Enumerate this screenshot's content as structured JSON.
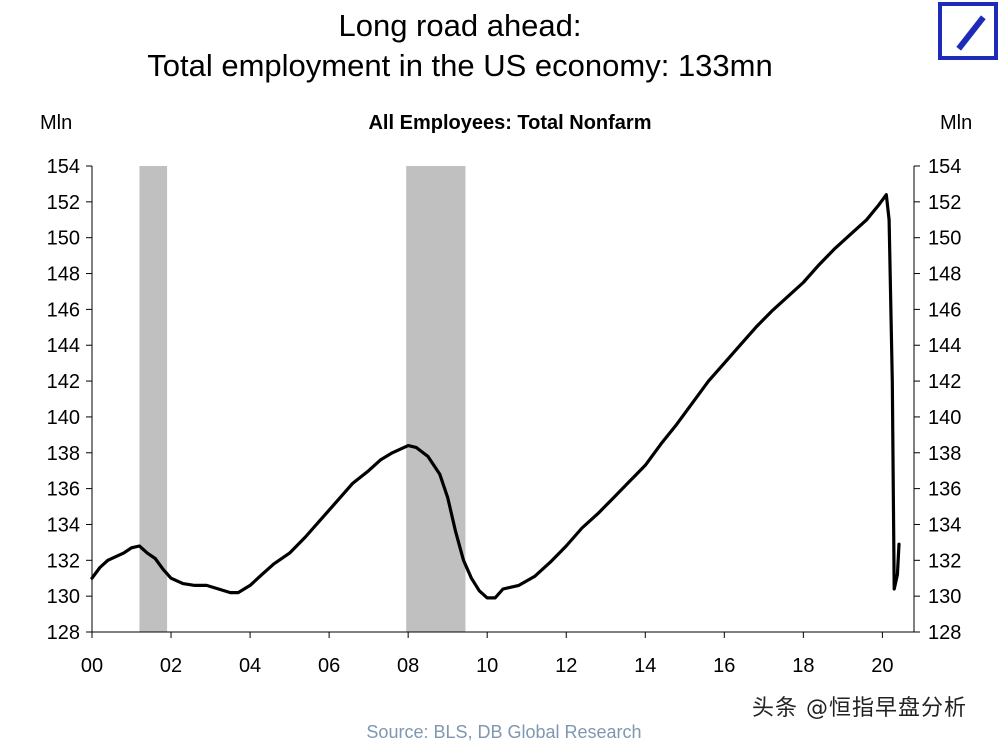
{
  "header": {
    "title_line1": "Long road ahead:",
    "title_line2": "Total employment in the US economy: 133mn"
  },
  "logo": {
    "icon": "deutsche-bank-logo-icon",
    "color": "#1d2bb8"
  },
  "chart_data": {
    "type": "line",
    "title": "All Employees: Total Nonfarm",
    "ylabel_left": "Mln",
    "ylabel_right": "Mln",
    "ylim": [
      128,
      154
    ],
    "yticks": [
      128,
      130,
      132,
      134,
      136,
      138,
      140,
      142,
      144,
      146,
      148,
      150,
      152,
      154
    ],
    "xlim": [
      2000,
      2020.8
    ],
    "xticks": [
      {
        "value": 2000,
        "label": "00"
      },
      {
        "value": 2002,
        "label": "02"
      },
      {
        "value": 2004,
        "label": "04"
      },
      {
        "value": 2006,
        "label": "06"
      },
      {
        "value": 2008,
        "label": "08"
      },
      {
        "value": 2010,
        "label": "10"
      },
      {
        "value": 2012,
        "label": "12"
      },
      {
        "value": 2014,
        "label": "14"
      },
      {
        "value": 2016,
        "label": "16"
      },
      {
        "value": 2018,
        "label": "18"
      },
      {
        "value": 2020,
        "label": "20"
      }
    ],
    "recessions": [
      [
        2001.2,
        2001.9
      ],
      [
        2007.95,
        2009.45
      ]
    ],
    "recession_color": "#c0c0c0",
    "line_color": "#000000",
    "grid": false,
    "series": [
      {
        "values": [
          [
            2000.0,
            131.0
          ],
          [
            2000.2,
            131.6
          ],
          [
            2000.4,
            132.0
          ],
          [
            2000.6,
            132.2
          ],
          [
            2000.8,
            132.4
          ],
          [
            2001.0,
            132.7
          ],
          [
            2001.2,
            132.8
          ],
          [
            2001.4,
            132.4
          ],
          [
            2001.6,
            132.1
          ],
          [
            2001.8,
            131.5
          ],
          [
            2002.0,
            131.0
          ],
          [
            2002.3,
            130.7
          ],
          [
            2002.6,
            130.6
          ],
          [
            2002.9,
            130.6
          ],
          [
            2003.2,
            130.4
          ],
          [
            2003.5,
            130.2
          ],
          [
            2003.7,
            130.2
          ],
          [
            2004.0,
            130.6
          ],
          [
            2004.3,
            131.2
          ],
          [
            2004.6,
            131.8
          ],
          [
            2005.0,
            132.4
          ],
          [
            2005.4,
            133.3
          ],
          [
            2005.8,
            134.3
          ],
          [
            2006.2,
            135.3
          ],
          [
            2006.6,
            136.3
          ],
          [
            2007.0,
            137.0
          ],
          [
            2007.3,
            137.6
          ],
          [
            2007.6,
            138.0
          ],
          [
            2008.0,
            138.4
          ],
          [
            2008.2,
            138.3
          ],
          [
            2008.5,
            137.8
          ],
          [
            2008.8,
            136.8
          ],
          [
            2009.0,
            135.5
          ],
          [
            2009.2,
            133.6
          ],
          [
            2009.4,
            132.0
          ],
          [
            2009.6,
            131.0
          ],
          [
            2009.8,
            130.3
          ],
          [
            2010.0,
            129.9
          ],
          [
            2010.2,
            129.9
          ],
          [
            2010.4,
            130.4
          ],
          [
            2010.8,
            130.6
          ],
          [
            2011.2,
            131.1
          ],
          [
            2011.6,
            131.9
          ],
          [
            2012.0,
            132.8
          ],
          [
            2012.4,
            133.8
          ],
          [
            2012.8,
            134.6
          ],
          [
            2013.2,
            135.5
          ],
          [
            2013.6,
            136.4
          ],
          [
            2014.0,
            137.3
          ],
          [
            2014.4,
            138.5
          ],
          [
            2014.8,
            139.6
          ],
          [
            2015.2,
            140.8
          ],
          [
            2015.6,
            142.0
          ],
          [
            2016.0,
            143.0
          ],
          [
            2016.4,
            144.0
          ],
          [
            2016.8,
            145.0
          ],
          [
            2017.2,
            145.9
          ],
          [
            2017.6,
            146.7
          ],
          [
            2018.0,
            147.5
          ],
          [
            2018.4,
            148.5
          ],
          [
            2018.8,
            149.4
          ],
          [
            2019.2,
            150.2
          ],
          [
            2019.6,
            151.0
          ],
          [
            2019.9,
            151.8
          ],
          [
            2020.1,
            152.4
          ],
          [
            2020.17,
            151.0
          ],
          [
            2020.25,
            142.0
          ],
          [
            2020.3,
            130.4
          ],
          [
            2020.38,
            131.2
          ],
          [
            2020.42,
            132.9
          ]
        ]
      }
    ]
  },
  "watermark": "头条 @恒指早盘分析",
  "source": "Source: BLS, DB Global Research"
}
